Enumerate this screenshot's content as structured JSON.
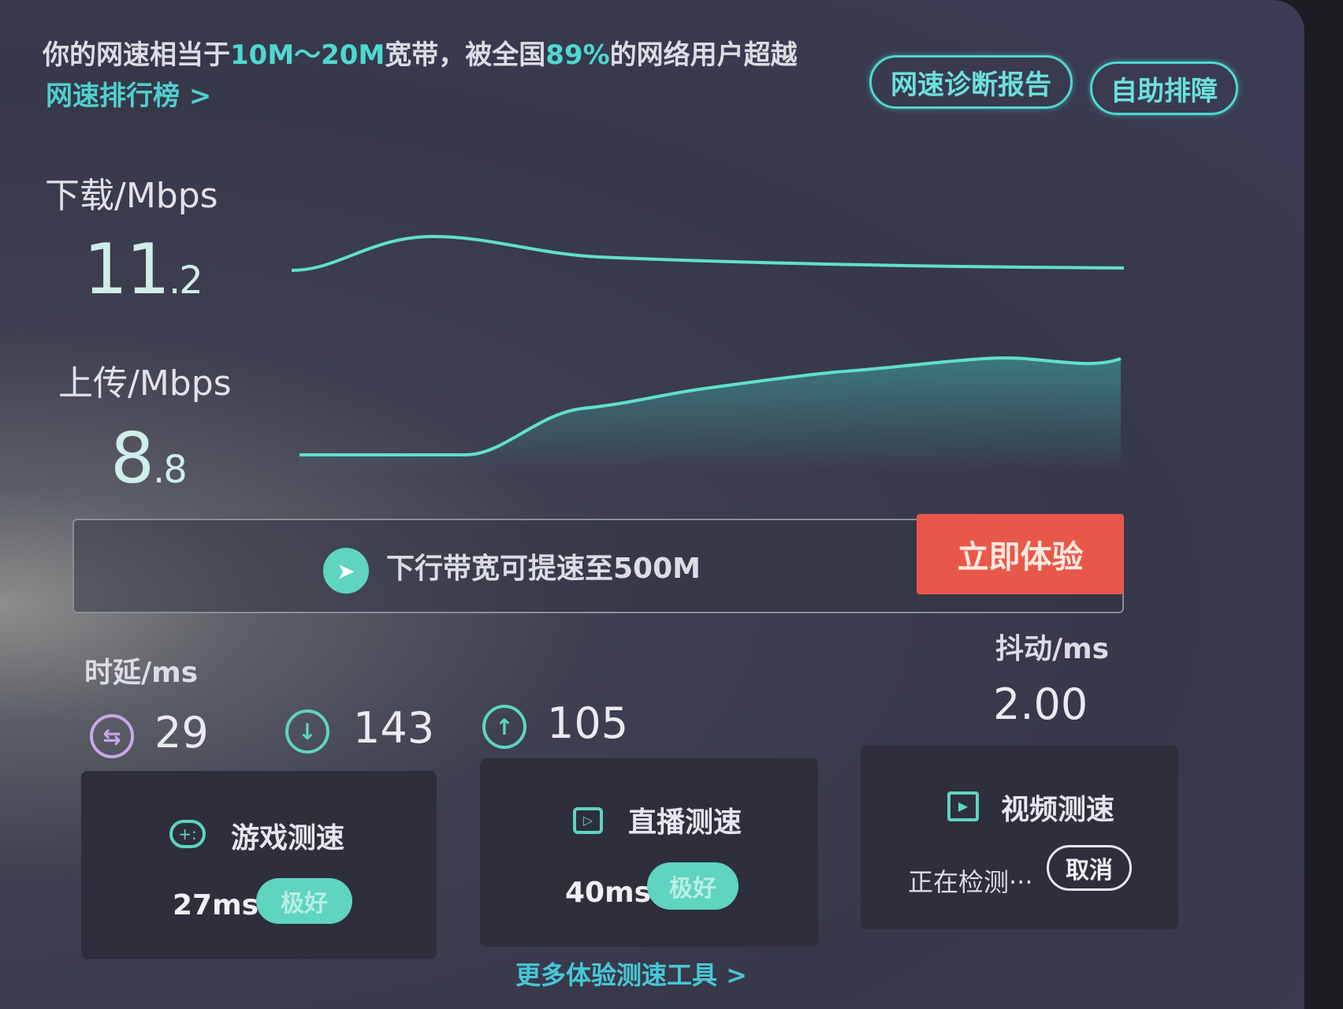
{
  "summary": {
    "prefix": "你的网速相当于",
    "bandwidth": "10M～20M",
    "middle": "宽带，被全国",
    "percent": "89%",
    "suffix": "的网络用户超越"
  },
  "rank_link": "网速排行榜 >",
  "buttons": {
    "diagnosis": "网速诊断报告",
    "self_help": "自助排障"
  },
  "download": {
    "label": "下载/Mbps",
    "int": "11",
    "dec": ".2"
  },
  "upload": {
    "label": "上传/Mbps",
    "int": "8",
    "dec": ".8"
  },
  "promo": {
    "text": "下行带宽可提速至500M",
    "button": "立即体验",
    "icon": "rocket-icon"
  },
  "latency": {
    "label": "时延/ms",
    "idle": "29",
    "down": "143",
    "up": "105"
  },
  "jitter": {
    "label": "抖动/ms",
    "value": "2.00"
  },
  "cards": [
    {
      "title": "游戏测速",
      "icon": "gamepad-icon",
      "ms": "27ms",
      "badge": "极好"
    },
    {
      "title": "直播测速",
      "icon": "tv-icon",
      "ms": "40ms",
      "badge": "极好"
    },
    {
      "title": "视频测速",
      "icon": "video-icon",
      "status": "正在检测···",
      "cancel": "取消"
    }
  ],
  "more_link": "更多体验测速工具 >",
  "colors": {
    "accent": "#4fd8d0",
    "cta": "#e8584a",
    "background": "#37384a",
    "latency_icon": "#c9a8e8"
  }
}
